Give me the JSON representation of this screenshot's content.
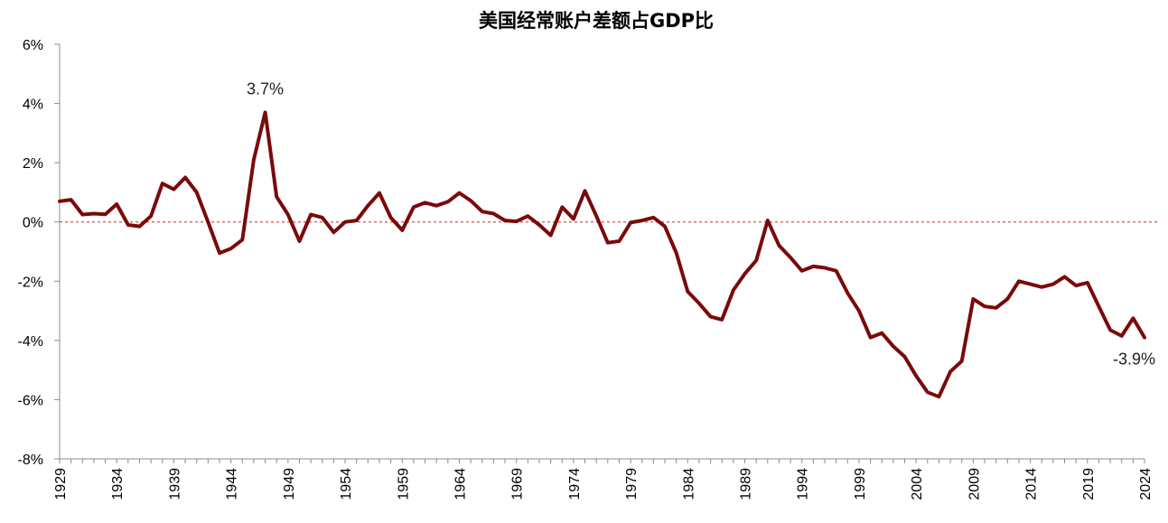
{
  "chart_data": {
    "type": "line",
    "title": "美国经常账户差额占GDP比",
    "xlabel": "",
    "ylabel": "",
    "ylim": [
      -8,
      6
    ],
    "yticks": [
      6,
      4,
      2,
      0,
      -2,
      -4,
      -6,
      -8
    ],
    "ytick_labels": [
      "6%",
      "4%",
      "2%",
      "0%",
      "-2%",
      "-4%",
      "-6%",
      "-8%"
    ],
    "xtick_labels": [
      "1929",
      "1934",
      "1939",
      "1944",
      "1949",
      "1954",
      "1959",
      "1964",
      "1969",
      "1974",
      "1979",
      "1984",
      "1989",
      "1994",
      "1999",
      "2004",
      "2009",
      "2014",
      "2019",
      "2024"
    ],
    "reference_line": {
      "y": 0,
      "color": "#e05050",
      "style": "dashed"
    },
    "series": [
      {
        "name": "美国经常账户差额占GDP比",
        "color": "#7a0a0a",
        "start_year": 1929,
        "values": [
          0.7,
          0.75,
          0.25,
          0.28,
          0.26,
          0.6,
          -0.1,
          -0.15,
          0.2,
          1.3,
          1.1,
          1.5,
          1.0,
          0.0,
          -1.05,
          -0.9,
          -0.6,
          2.1,
          3.7,
          0.85,
          0.25,
          -0.65,
          0.25,
          0.15,
          -0.35,
          0.0,
          0.05,
          0.55,
          0.98,
          0.15,
          -0.28,
          0.5,
          0.65,
          0.55,
          0.68,
          0.98,
          0.72,
          0.35,
          0.28,
          0.05,
          0.02,
          0.2,
          -0.1,
          -0.45,
          0.5,
          0.1,
          1.05,
          0.2,
          -0.7,
          -0.65,
          -0.02,
          0.05,
          0.15,
          -0.15,
          -1.05,
          -2.35,
          -2.75,
          -3.2,
          -3.3,
          -2.3,
          -1.75,
          -1.3,
          0.05,
          -0.8,
          -1.2,
          -1.65,
          -1.5,
          -1.55,
          -1.65,
          -2.4,
          -3.0,
          -3.9,
          -3.75,
          -4.2,
          -4.55,
          -5.2,
          -5.75,
          -5.9,
          -5.05,
          -4.7,
          -2.6,
          -2.85,
          -2.9,
          -2.6,
          -2.0,
          -2.1,
          -2.2,
          -2.1,
          -1.85,
          -2.15,
          -2.05,
          -2.85,
          -3.65,
          -3.85,
          -3.25,
          -3.9
        ]
      }
    ],
    "annotations": [
      {
        "year": 1947,
        "value": 3.7,
        "text": "3.7%"
      },
      {
        "year": 2024,
        "value": -3.9,
        "text": "-3.9%"
      }
    ]
  }
}
